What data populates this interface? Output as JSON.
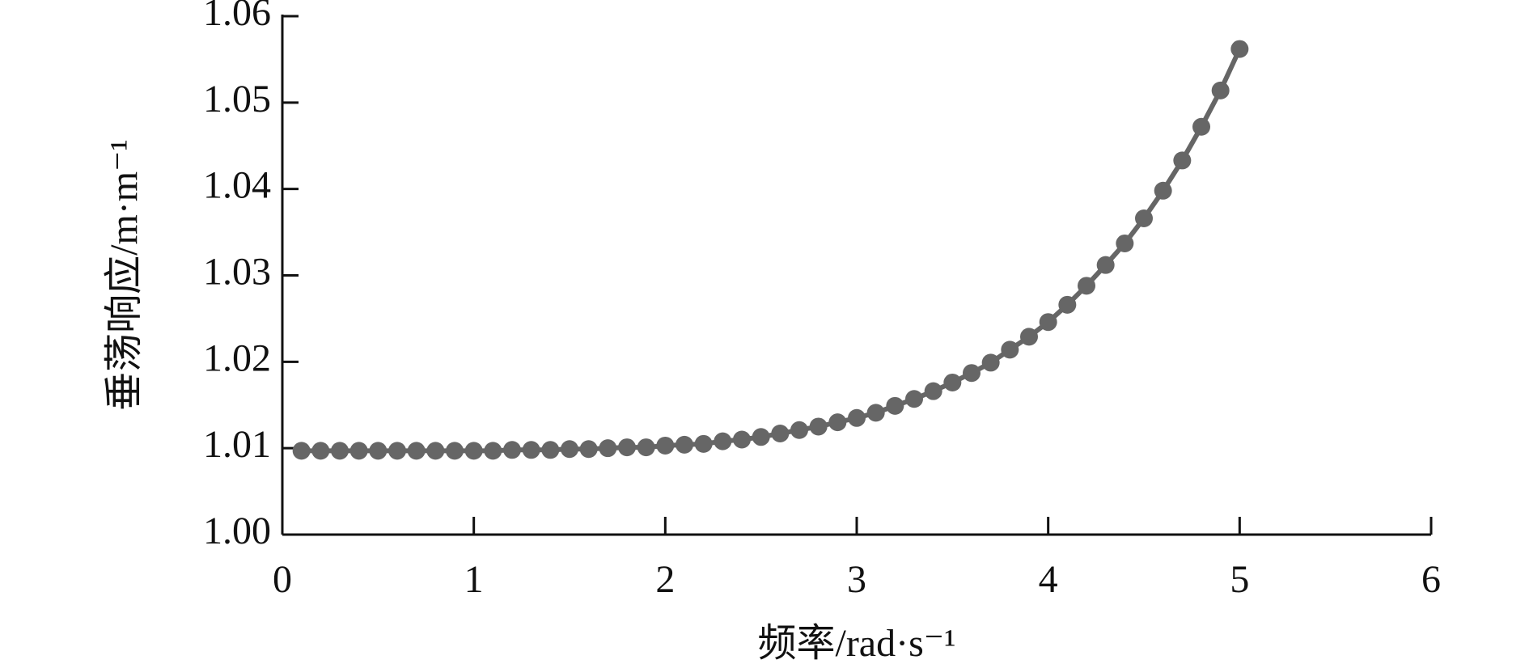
{
  "chart_data": {
    "type": "line",
    "x_label": "频率/rad·s⁻¹",
    "y_label": "垂荡响应/m·m⁻¹",
    "x": [
      0.1,
      0.2,
      0.3,
      0.4,
      0.5,
      0.6,
      0.7,
      0.8,
      0.9,
      1.0,
      1.1,
      1.2,
      1.3,
      1.4,
      1.5,
      1.6,
      1.7,
      1.8,
      1.9,
      2.0,
      2.1,
      2.2,
      2.3,
      2.4,
      2.5,
      2.6,
      2.7,
      2.8,
      2.9,
      3.0,
      3.1,
      3.2,
      3.3,
      3.4,
      3.5,
      3.6,
      3.7,
      3.8,
      3.9,
      4.0,
      4.1,
      4.2,
      4.3,
      4.4,
      4.5,
      4.6,
      4.7,
      4.8,
      4.9,
      5.0
    ],
    "series": [
      {
        "color": "#666666",
        "values": [
          1.0097,
          1.0097,
          1.0097,
          1.0097,
          1.0097,
          1.0097,
          1.0097,
          1.0097,
          1.0097,
          1.0097,
          1.0097,
          1.0098,
          1.0098,
          1.0098,
          1.0099,
          1.0099,
          1.01,
          1.0101,
          1.0101,
          1.0103,
          1.0104,
          1.0105,
          1.0108,
          1.011,
          1.0113,
          1.0117,
          1.0121,
          1.0125,
          1.013,
          1.0135,
          1.0141,
          1.0149,
          1.0157,
          1.0166,
          1.0176,
          1.0187,
          1.0199,
          1.0214,
          1.0229,
          1.0246,
          1.0266,
          1.0288,
          1.0312,
          1.0337,
          1.0366,
          1.0398,
          1.0433,
          1.0472,
          1.0514,
          1.0562
        ]
      }
    ],
    "xlim": [
      0,
      6
    ],
    "xticks": [
      0,
      1,
      2,
      3,
      4,
      5,
      6
    ],
    "ylim": [
      1.0,
      1.06
    ],
    "yticks": [
      {
        "value": 1.0,
        "label": "1.00"
      },
      1.01,
      1.02,
      1.03,
      1.04,
      1.05,
      1.06
    ]
  }
}
